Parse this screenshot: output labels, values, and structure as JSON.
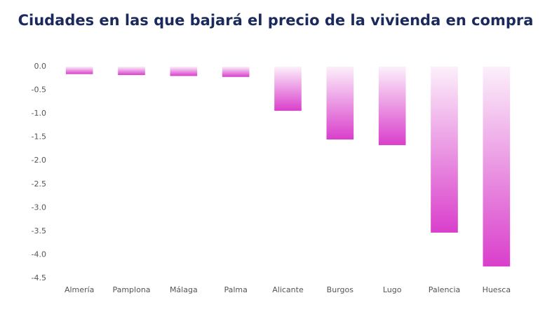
{
  "chart_data": {
    "type": "bar",
    "title": "Ciudades en las que bajará el precio de la vivienda en compra",
    "categories": [
      "Almería",
      "Pamplona",
      "Málaga",
      "Palma",
      "Alicante",
      "Burgos",
      "Lugo",
      "Palencia",
      "Huesca"
    ],
    "values": [
      -0.16,
      -0.18,
      -0.2,
      -0.22,
      -0.94,
      -1.55,
      -1.67,
      -3.53,
      -4.25
    ],
    "color": "#d93fcb",
    "ylim": [
      -4.5,
      0
    ],
    "yticks": [
      {
        "value": 0,
        "label": "0.0"
      },
      -0.5,
      {
        "value": -1,
        "label": "-1.0"
      },
      -1.5,
      {
        "value": -2,
        "label": "-2.0"
      },
      -2.5,
      {
        "value": -3,
        "label": "-3.0"
      },
      -3.5,
      {
        "value": -4,
        "label": "-4.0"
      },
      -4.5
    ],
    "grid": false
  }
}
